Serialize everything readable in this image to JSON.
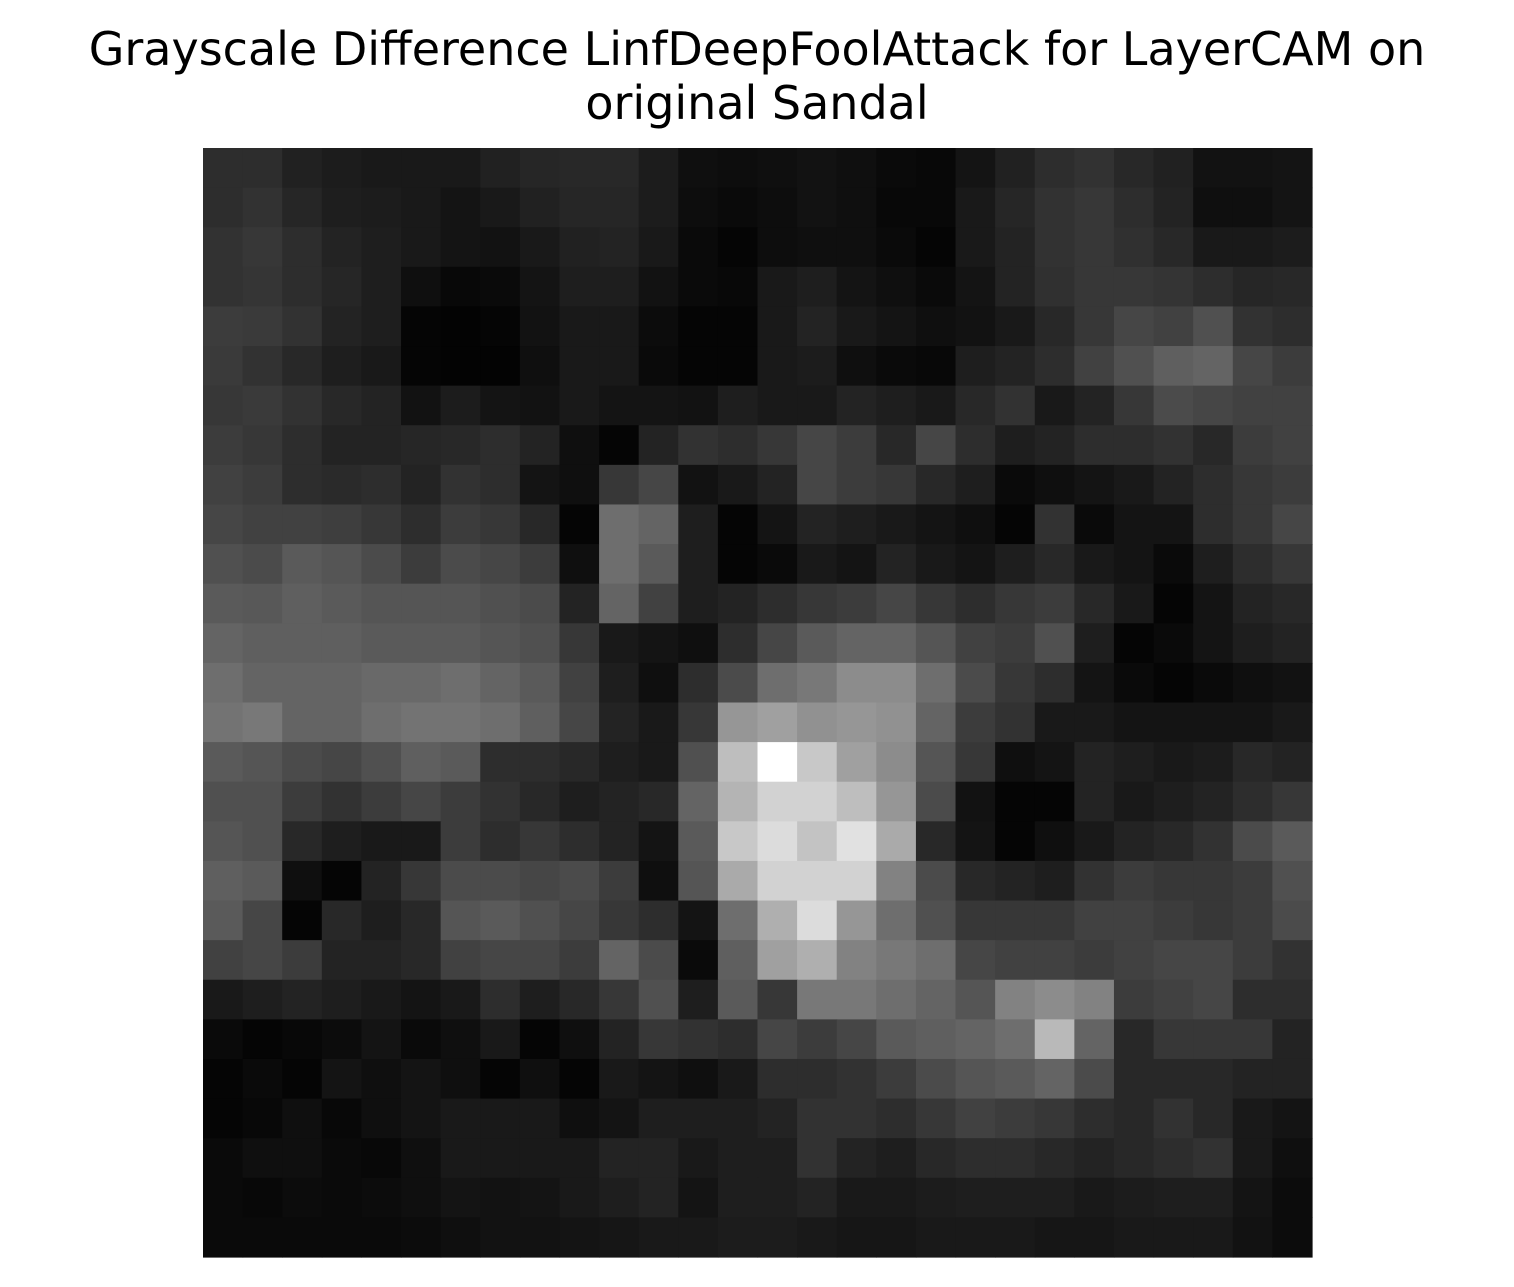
{
  "chart_data": {
    "type": "heatmap",
    "title_lines": [
      "Grayscale Difference LinfDeepFoolAttack for LayerCAM on",
      "original Sandal"
    ],
    "colormap": "gray",
    "axes": "off",
    "rows": 28,
    "cols": 28,
    "values": [
      [
        45,
        45,
        33,
        28,
        25,
        25,
        25,
        33,
        38,
        40,
        40,
        28,
        15,
        13,
        15,
        18,
        15,
        10,
        8,
        20,
        33,
        45,
        50,
        40,
        33,
        18,
        18,
        20
      ],
      [
        45,
        50,
        38,
        30,
        28,
        25,
        20,
        25,
        33,
        38,
        38,
        28,
        13,
        10,
        13,
        18,
        15,
        8,
        8,
        25,
        38,
        50,
        55,
        45,
        35,
        15,
        15,
        20
      ],
      [
        50,
        55,
        45,
        35,
        30,
        25,
        20,
        18,
        25,
        33,
        35,
        25,
        10,
        5,
        13,
        15,
        15,
        10,
        5,
        25,
        35,
        50,
        55,
        48,
        40,
        25,
        25,
        28
      ],
      [
        50,
        53,
        45,
        38,
        30,
        15,
        8,
        10,
        20,
        30,
        30,
        18,
        10,
        8,
        25,
        30,
        20,
        15,
        10,
        20,
        35,
        48,
        55,
        55,
        52,
        45,
        38,
        40
      ],
      [
        60,
        58,
        50,
        35,
        30,
        5,
        3,
        5,
        18,
        25,
        25,
        12,
        5,
        5,
        25,
        35,
        25,
        20,
        15,
        18,
        25,
        40,
        55,
        70,
        65,
        80,
        50,
        45
      ],
      [
        58,
        50,
        40,
        30,
        25,
        5,
        3,
        3,
        15,
        25,
        25,
        10,
        5,
        5,
        25,
        28,
        15,
        10,
        8,
        30,
        35,
        45,
        65,
        80,
        95,
        100,
        70,
        60
      ],
      [
        55,
        58,
        50,
        40,
        35,
        18,
        28,
        20,
        18,
        25,
        20,
        20,
        18,
        30,
        25,
        25,
        35,
        30,
        25,
        40,
        50,
        25,
        35,
        55,
        75,
        70,
        65,
        65
      ],
      [
        60,
        55,
        45,
        35,
        35,
        38,
        40,
        45,
        35,
        15,
        5,
        35,
        50,
        45,
        55,
        70,
        60,
        40,
        70,
        45,
        30,
        35,
        45,
        45,
        50,
        40,
        60,
        65
      ],
      [
        65,
        60,
        45,
        42,
        45,
        35,
        50,
        45,
        20,
        15,
        55,
        70,
        18,
        25,
        35,
        70,
        60,
        55,
        40,
        30,
        10,
        15,
        20,
        25,
        35,
        45,
        55,
        60
      ],
      [
        70,
        65,
        65,
        62,
        55,
        45,
        60,
        55,
        40,
        5,
        110,
        100,
        30,
        5,
        20,
        35,
        30,
        25,
        20,
        15,
        5,
        50,
        10,
        20,
        20,
        45,
        55,
        70
      ],
      [
        80,
        75,
        90,
        85,
        75,
        60,
        75,
        70,
        60,
        15,
        110,
        90,
        30,
        5,
        10,
        25,
        20,
        35,
        25,
        20,
        30,
        40,
        25,
        20,
        10,
        30,
        45,
        55
      ],
      [
        90,
        88,
        95,
        90,
        85,
        85,
        85,
        80,
        75,
        35,
        100,
        65,
        30,
        35,
        45,
        55,
        60,
        70,
        55,
        45,
        55,
        60,
        40,
        25,
        5,
        20,
        35,
        40
      ],
      [
        100,
        95,
        95,
        95,
        90,
        90,
        90,
        85,
        80,
        55,
        25,
        20,
        15,
        45,
        70,
        90,
        100,
        100,
        85,
        65,
        60,
        80,
        30,
        5,
        10,
        20,
        30,
        35
      ],
      [
        110,
        100,
        100,
        100,
        105,
        105,
        110,
        100,
        90,
        65,
        30,
        15,
        45,
        75,
        110,
        120,
        140,
        140,
        110,
        75,
        55,
        45,
        20,
        10,
        5,
        10,
        15,
        18
      ],
      [
        115,
        120,
        100,
        100,
        110,
        115,
        115,
        110,
        95,
        70,
        35,
        25,
        55,
        150,
        160,
        145,
        150,
        145,
        100,
        60,
        50,
        25,
        25,
        20,
        20,
        20,
        20,
        25
      ],
      [
        90,
        85,
        75,
        70,
        80,
        95,
        90,
        45,
        45,
        40,
        30,
        25,
        80,
        190,
        255,
        200,
        160,
        140,
        85,
        55,
        15,
        20,
        35,
        30,
        25,
        28,
        40,
        35
      ],
      [
        80,
        80,
        60,
        50,
        60,
        70,
        60,
        50,
        40,
        30,
        35,
        40,
        100,
        180,
        210,
        210,
        190,
        150,
        75,
        18,
        5,
        5,
        35,
        25,
        30,
        35,
        45,
        55
      ],
      [
        85,
        80,
        40,
        30,
        25,
        25,
        60,
        45,
        55,
        45,
        35,
        20,
        90,
        200,
        220,
        195,
        225,
        170,
        40,
        20,
        5,
        15,
        25,
        35,
        40,
        50,
        75,
        90
      ],
      [
        95,
        90,
        15,
        5,
        35,
        55,
        75,
        75,
        70,
        75,
        60,
        15,
        85,
        170,
        210,
        210,
        210,
        130,
        75,
        40,
        35,
        30,
        50,
        60,
        55,
        55,
        60,
        80
      ],
      [
        90,
        70,
        5,
        40,
        30,
        40,
        85,
        90,
        80,
        70,
        55,
        45,
        20,
        110,
        175,
        220,
        150,
        110,
        80,
        55,
        55,
        55,
        65,
        65,
        60,
        55,
        60,
        75
      ],
      [
        65,
        70,
        60,
        35,
        35,
        40,
        65,
        70,
        70,
        60,
        100,
        75,
        10,
        95,
        160,
        175,
        130,
        120,
        110,
        70,
        65,
        65,
        60,
        65,
        70,
        70,
        60,
        50
      ],
      [
        25,
        30,
        35,
        30,
        25,
        20,
        25,
        45,
        30,
        40,
        55,
        80,
        30,
        90,
        55,
        120,
        120,
        110,
        100,
        85,
        130,
        140,
        130,
        60,
        65,
        70,
        45,
        45
      ],
      [
        10,
        5,
        8,
        12,
        20,
        10,
        15,
        25,
        5,
        15,
        35,
        55,
        50,
        45,
        70,
        60,
        70,
        90,
        95,
        100,
        110,
        185,
        100,
        40,
        55,
        55,
        55,
        35
      ],
      [
        5,
        10,
        5,
        20,
        15,
        20,
        15,
        5,
        15,
        5,
        25,
        20,
        15,
        25,
        45,
        45,
        50,
        60,
        75,
        85,
        90,
        100,
        75,
        40,
        40,
        40,
        35,
        35
      ],
      [
        5,
        8,
        15,
        8,
        15,
        20,
        25,
        25,
        25,
        15,
        20,
        30,
        30,
        30,
        35,
        50,
        50,
        45,
        55,
        65,
        60,
        55,
        45,
        40,
        50,
        40,
        25,
        20
      ],
      [
        10,
        15,
        15,
        10,
        8,
        15,
        25,
        25,
        25,
        25,
        35,
        35,
        25,
        30,
        30,
        50,
        35,
        30,
        40,
        45,
        45,
        40,
        35,
        40,
        45,
        50,
        25,
        15
      ],
      [
        10,
        8,
        12,
        10,
        12,
        15,
        20,
        18,
        20,
        25,
        30,
        35,
        20,
        30,
        30,
        35,
        25,
        25,
        28,
        30,
        30,
        30,
        25,
        28,
        30,
        30,
        20,
        12
      ],
      [
        10,
        10,
        10,
        10,
        10,
        12,
        15,
        18,
        18,
        20,
        22,
        25,
        25,
        28,
        28,
        25,
        22,
        22,
        25,
        25,
        25,
        22,
        22,
        25,
        25,
        25,
        18,
        12
      ]
    ],
    "vmin": 0,
    "vmax": 255
  }
}
